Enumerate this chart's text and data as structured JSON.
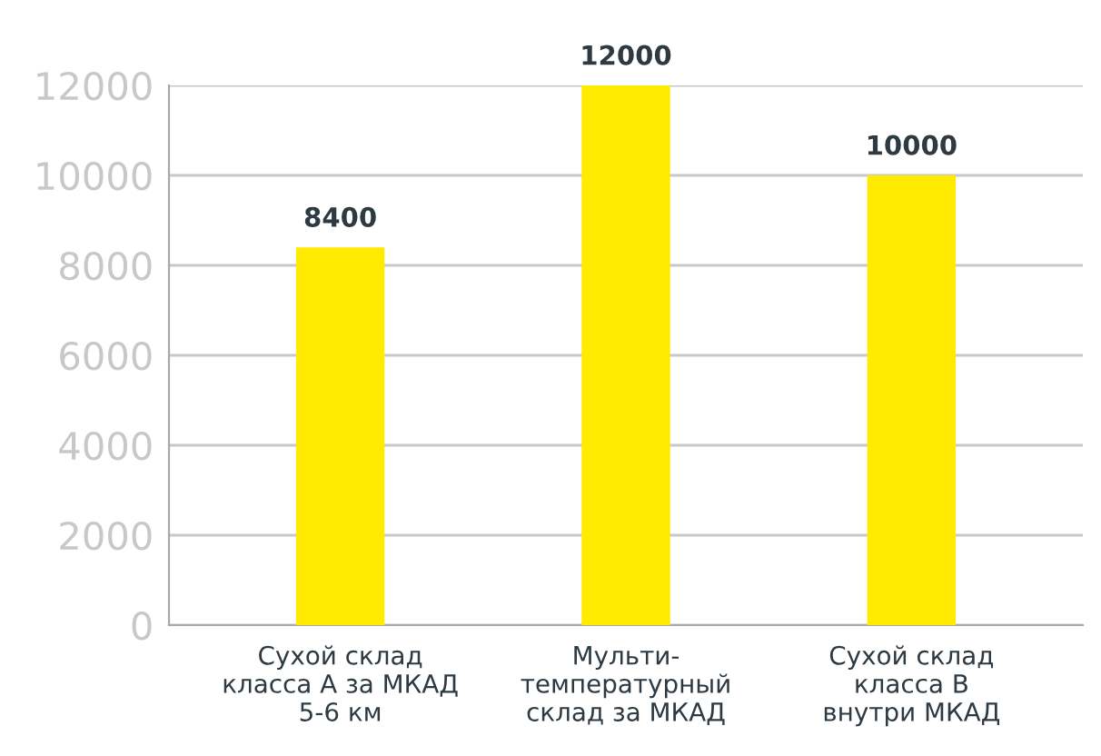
{
  "chart_data": {
    "type": "bar",
    "categories": [
      "Сухой склад\nкласса А за МКАД\n5-6 км",
      "Мульти-\nтемпературный\nсклад за МКАД",
      "Сухой склад\nкласса В\nвнутри МКАД"
    ],
    "values": [
      8400,
      12000,
      10000
    ],
    "color": "#ffea00",
    "ylim": [
      0,
      12000
    ],
    "yticks": [
      0,
      2000,
      4000,
      6000,
      8000,
      10000,
      12000
    ],
    "grid": "y",
    "data_labels": true
  }
}
